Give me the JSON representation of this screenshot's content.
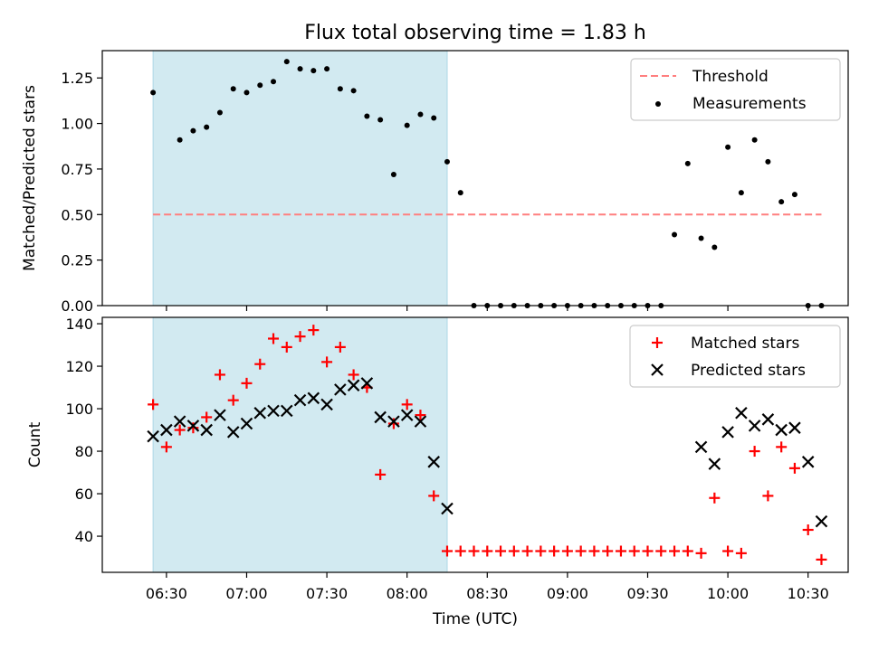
{
  "title": "Flux total observing time = 1.83 h",
  "colors": {
    "shade": "#add8e6",
    "threshold": "#ff7f7f",
    "measurement": "#000000",
    "matched": "#ff0000",
    "predicted": "#000000"
  },
  "chart_data": [
    {
      "type": "scatter",
      "ylabel": "Matched/Predicted stars",
      "ylim": [
        0,
        1.4
      ],
      "yticks": [
        0.0,
        0.25,
        0.5,
        0.75,
        1.0,
        1.25
      ],
      "yticklabels": [
        "0.00",
        "0.25",
        "0.50",
        "0.75",
        "1.00",
        "1.25"
      ],
      "shaded_span": [
        "06:25",
        "08:15"
      ],
      "legend": {
        "placement": "top-right",
        "entries": [
          "Threshold",
          "Measurements"
        ]
      },
      "threshold": {
        "name": "Threshold",
        "y": 0.5,
        "x": [
          "06:25",
          "10:35"
        ]
      },
      "series": [
        {
          "name": "Measurements",
          "x": [
            "06:25",
            "06:35",
            "06:40",
            "06:45",
            "06:50",
            "06:55",
            "07:00",
            "07:05",
            "07:10",
            "07:15",
            "07:20",
            "07:25",
            "07:30",
            "07:35",
            "07:40",
            "07:45",
            "07:50",
            "07:55",
            "08:00",
            "08:05",
            "08:10",
            "08:15",
            "08:20",
            "08:25",
            "08:30",
            "08:35",
            "08:40",
            "08:45",
            "08:50",
            "08:55",
            "09:00",
            "09:05",
            "09:10",
            "09:15",
            "09:20",
            "09:25",
            "09:30",
            "09:35",
            "09:40",
            "09:45",
            "09:50",
            "09:55",
            "10:00",
            "10:05",
            "10:10",
            "10:15",
            "10:20",
            "10:25",
            "10:30",
            "10:35"
          ],
          "y": [
            1.17,
            0.91,
            0.96,
            0.98,
            1.06,
            1.19,
            1.17,
            1.21,
            1.23,
            1.34,
            1.3,
            1.29,
            1.3,
            1.19,
            1.18,
            1.04,
            1.02,
            0.72,
            0.99,
            1.05,
            1.03,
            0.79,
            0.62,
            0,
            0,
            0,
            0,
            0,
            0,
            0,
            0,
            0,
            0,
            0,
            0,
            0,
            0,
            0,
            0.39,
            0.78,
            0.37,
            0.32,
            0.87,
            0.62,
            0.91,
            0.79,
            0.57,
            0.61,
            0,
            0
          ]
        }
      ]
    },
    {
      "type": "scatter",
      "xlabel": "Time (UTC)",
      "ylabel": "Count",
      "ylim": [
        23,
        143
      ],
      "yticks": [
        40,
        60,
        80,
        100,
        120,
        140
      ],
      "yticklabels": [
        "40",
        "60",
        "80",
        "100",
        "120",
        "140"
      ],
      "xtick_values": [
        "06:30",
        "07:00",
        "07:30",
        "08:00",
        "08:30",
        "09:00",
        "09:30",
        "10:00",
        "10:30"
      ],
      "xticklabels": [
        "06:30",
        "07:00",
        "07:30",
        "08:00",
        "08:30",
        "09:00",
        "09:30",
        "10:00",
        "10:30"
      ],
      "shaded_span": [
        "06:25",
        "08:15"
      ],
      "legend": {
        "placement": "top-right",
        "entries": [
          "Matched stars",
          "Predicted stars"
        ]
      },
      "series": [
        {
          "name": "Matched stars",
          "x": [
            "06:25",
            "06:30",
            "06:35",
            "06:40",
            "06:45",
            "06:50",
            "06:55",
            "07:00",
            "07:05",
            "07:10",
            "07:15",
            "07:20",
            "07:25",
            "07:30",
            "07:35",
            "07:40",
            "07:45",
            "07:50",
            "07:55",
            "08:00",
            "08:05",
            "08:10",
            "08:15",
            "08:20",
            "08:25",
            "08:30",
            "08:35",
            "08:40",
            "08:45",
            "08:50",
            "08:55",
            "09:00",
            "09:05",
            "09:10",
            "09:15",
            "09:20",
            "09:25",
            "09:30",
            "09:35",
            "09:40",
            "09:45",
            "09:50",
            "09:55",
            "10:00",
            "10:05",
            "10:10",
            "10:15",
            "10:20",
            "10:25",
            "10:30",
            "10:35"
          ],
          "y": [
            102,
            82,
            90,
            91,
            96,
            116,
            104,
            112,
            121,
            133,
            129,
            134,
            137,
            122,
            129,
            116,
            110,
            69,
            93,
            102,
            97,
            59,
            33,
            33,
            33,
            33,
            33,
            33,
            33,
            33,
            33,
            33,
            33,
            33,
            33,
            33,
            33,
            33,
            33,
            33,
            33,
            32,
            58,
            33,
            32,
            80,
            59,
            82,
            72,
            43,
            29
          ]
        },
        {
          "name": "Predicted stars",
          "x": [
            "06:25",
            "06:30",
            "06:35",
            "06:40",
            "06:45",
            "06:50",
            "06:55",
            "07:00",
            "07:05",
            "07:10",
            "07:15",
            "07:20",
            "07:25",
            "07:30",
            "07:35",
            "07:40",
            "07:45",
            "07:50",
            "07:55",
            "08:00",
            "08:05",
            "08:10",
            "08:15",
            "09:50",
            "09:55",
            "10:00",
            "10:05",
            "10:10",
            "10:15",
            "10:20",
            "10:25",
            "10:30",
            "10:35"
          ],
          "y": [
            87,
            90,
            94,
            92,
            90,
            97,
            89,
            93,
            98,
            99,
            99,
            104,
            105,
            102,
            109,
            111,
            112,
            96,
            94,
            97,
            94,
            75,
            53,
            82,
            74,
            89,
            98,
            92,
            95,
            90,
            91,
            75,
            47
          ]
        }
      ]
    }
  ]
}
